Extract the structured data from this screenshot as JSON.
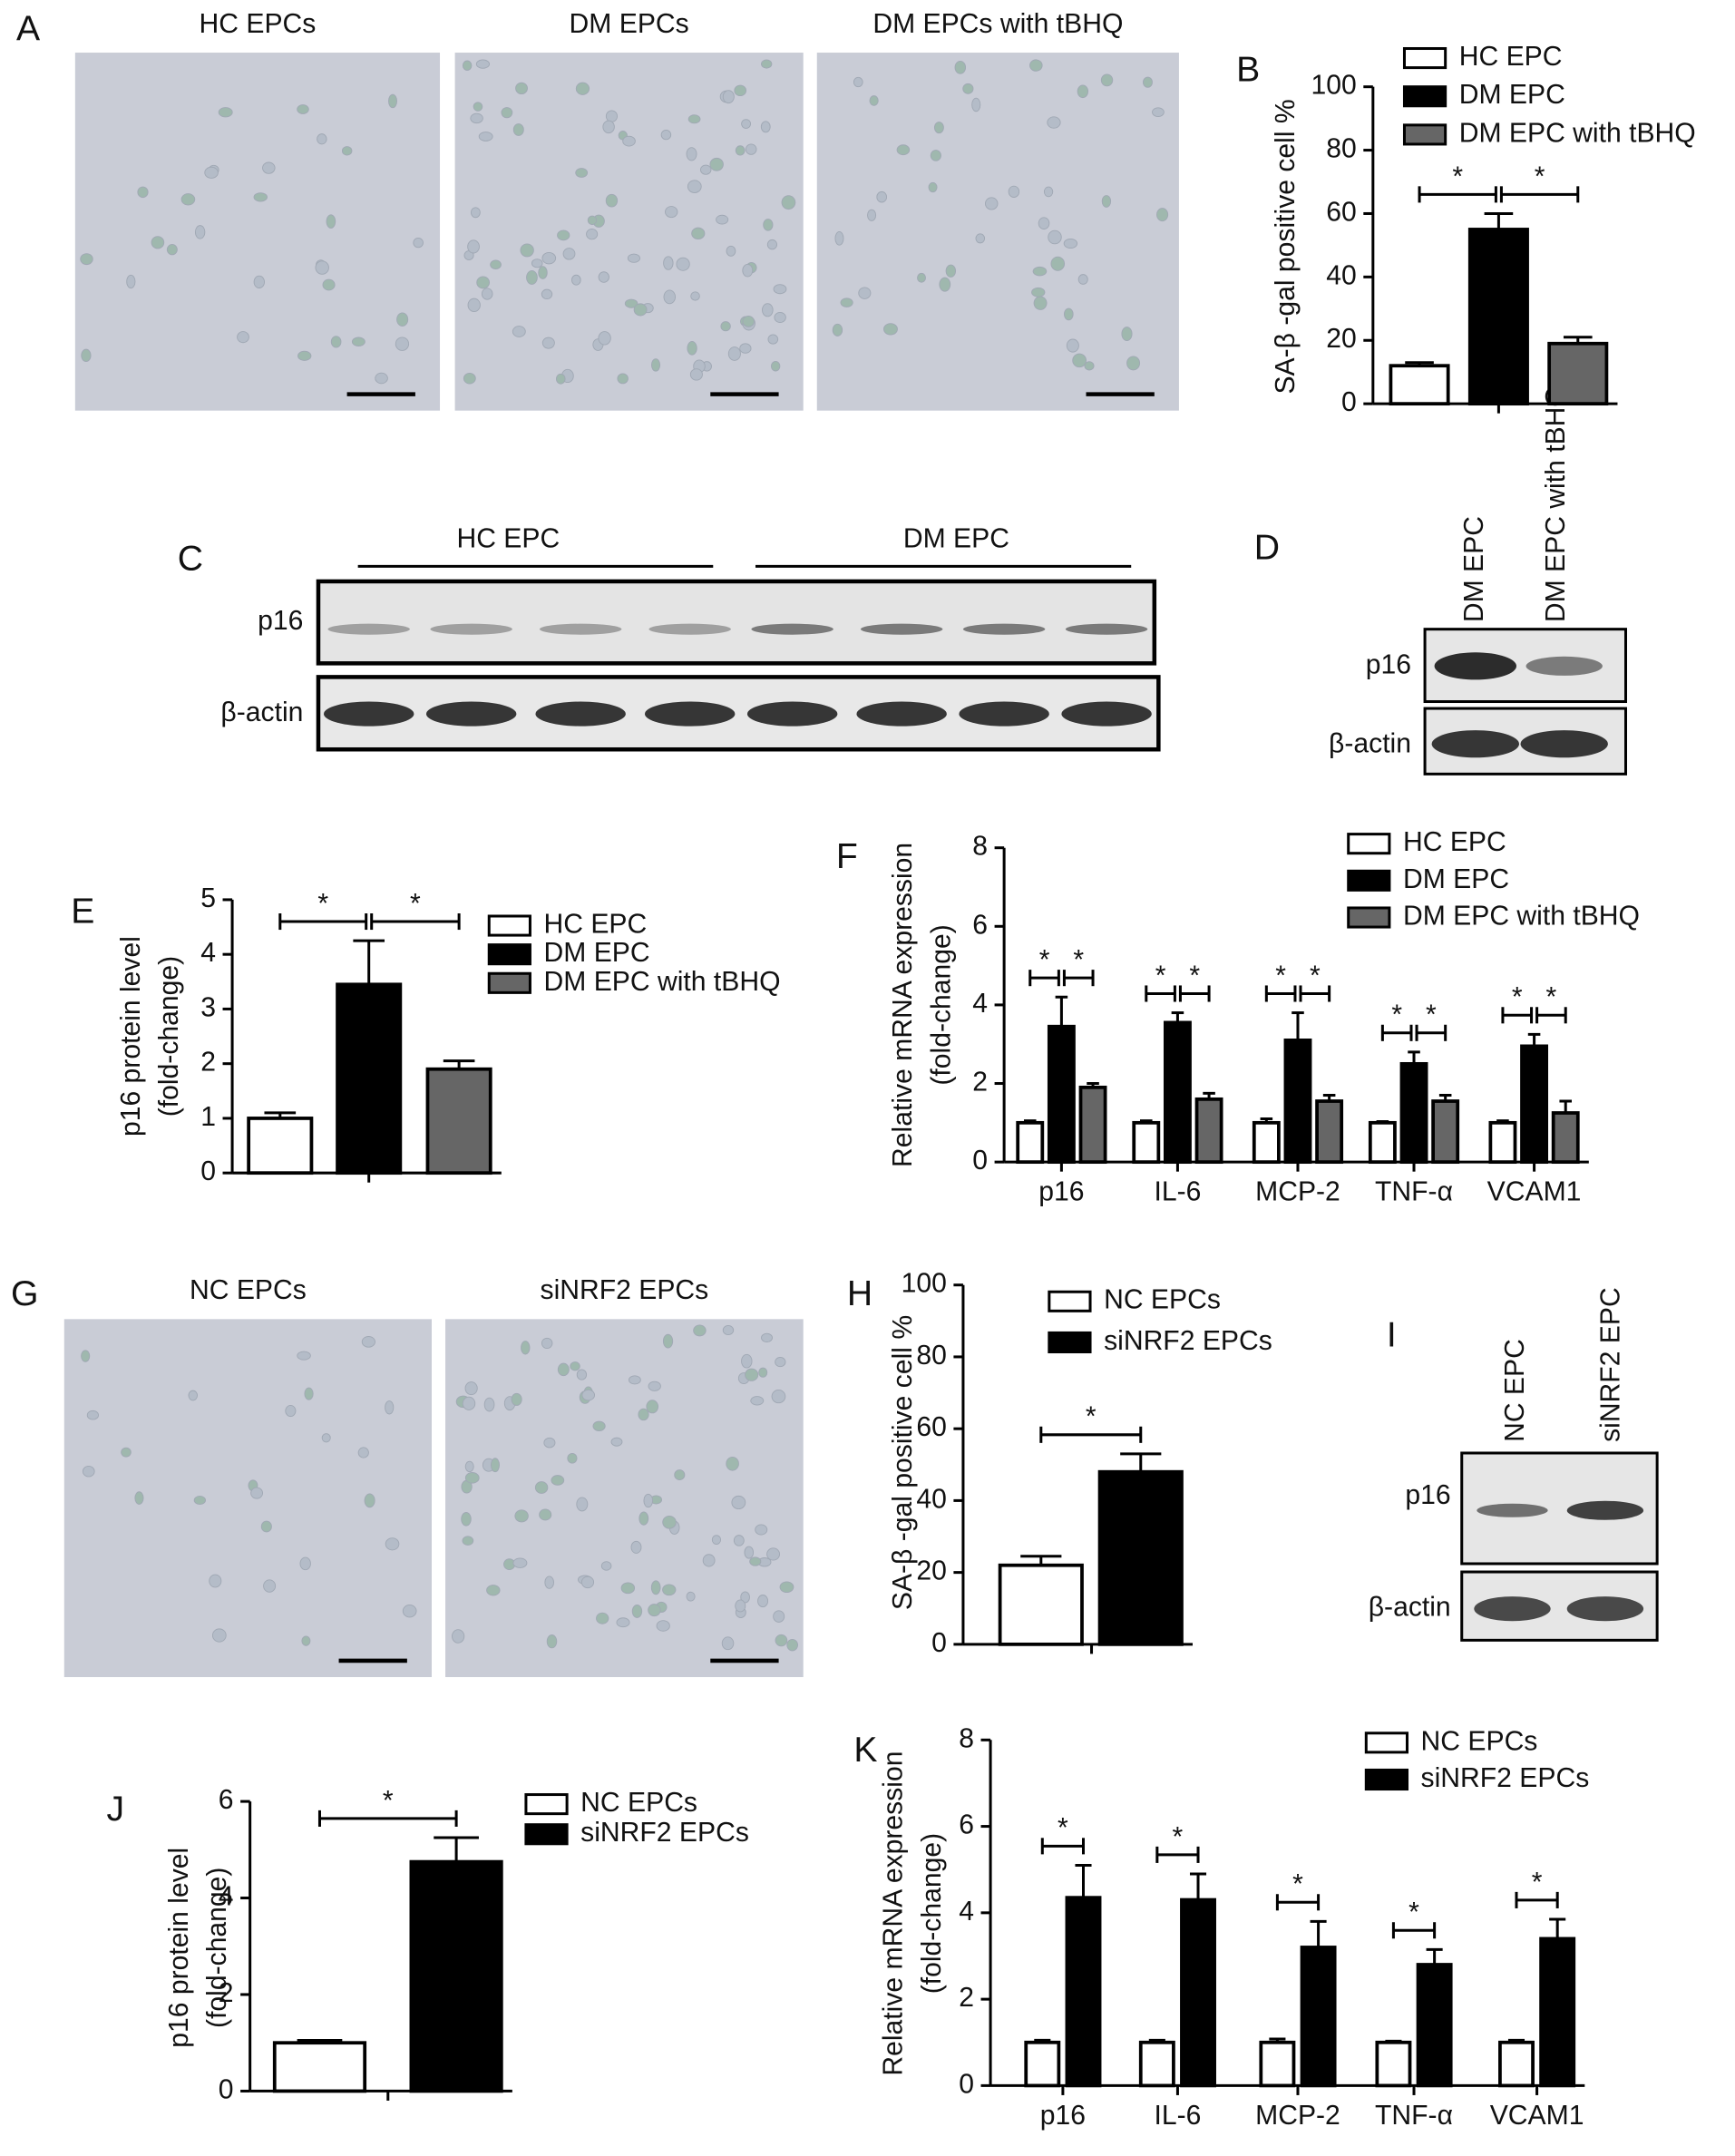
{
  "figure": {
    "micrographs": [
      {
        "panel": "A",
        "titles": [
          "HC EPCs",
          "DM EPCs",
          "DM EPCs with tBHQ"
        ]
      },
      {
        "panel": "G",
        "titles": [
          "NC EPCs",
          "siNRF2 EPCs"
        ]
      }
    ],
    "blots": [
      {
        "panel": "C",
        "groups": [
          "HC EPC",
          "DM EPC"
        ],
        "rows": [
          "p16",
          "β-actin"
        ]
      },
      {
        "panel": "D",
        "columns": [
          "DM EPC",
          "DM EPC with tBHQ"
        ],
        "rows": [
          "p16",
          "β-actin"
        ]
      },
      {
        "panel": "I",
        "columns": [
          "NC EPC",
          "siNRF2 EPC"
        ],
        "rows": [
          "p16",
          "β-actin"
        ]
      }
    ]
  },
  "chart_data": [
    {
      "type": "bar",
      "panel": "B",
      "ylabel": [
        "SA-β -gal positive cell %"
      ],
      "categories": [
        null
      ],
      "series": [
        {
          "name": "HC EPC",
          "color": "#ffffff",
          "values": [
            12
          ],
          "errors": [
            1
          ]
        },
        {
          "name": "DM EPC",
          "color": "#000000",
          "values": [
            55
          ],
          "errors": [
            5
          ]
        },
        {
          "name": "DM EPC with tBHQ",
          "color": "#666666",
          "values": [
            19
          ],
          "errors": [
            2
          ]
        }
      ],
      "annotations": [
        "*",
        "*"
      ],
      "ylim": [
        0,
        100
      ],
      "yticks": [
        0,
        20,
        40,
        60,
        80,
        100
      ]
    },
    {
      "type": "bar",
      "panel": "E",
      "ylabel": [
        "p16 protein level",
        "(fold-change)"
      ],
      "categories": [
        null
      ],
      "series": [
        {
          "name": "HC EPC",
          "color": "#ffffff",
          "values": [
            1.0
          ],
          "errors": [
            0.1
          ]
        },
        {
          "name": "DM EPC",
          "color": "#000000",
          "values": [
            3.45
          ],
          "errors": [
            0.8
          ]
        },
        {
          "name": "DM EPC with tBHQ",
          "color": "#666666",
          "values": [
            1.9
          ],
          "errors": [
            0.15
          ]
        }
      ],
      "annotations": [
        "*",
        "*"
      ],
      "ylim": [
        0,
        5
      ],
      "yticks": [
        0,
        1,
        2,
        3,
        4,
        5
      ]
    },
    {
      "type": "bar",
      "panel": "F",
      "ylabel": [
        "Relative mRNA expression",
        "(fold-change)"
      ],
      "categories": [
        "p16",
        "IL-6",
        "MCP-2",
        "TNF-α",
        "VCAM1"
      ],
      "series": [
        {
          "name": "HC EPC",
          "color": "#ffffff",
          "values": [
            1,
            1,
            1,
            1,
            1
          ],
          "errors": [
            0.05,
            0.05,
            0.1,
            0.03,
            0.05
          ]
        },
        {
          "name": "DM EPC",
          "color": "#000000",
          "values": [
            3.45,
            3.55,
            3.1,
            2.5,
            2.95
          ],
          "errors": [
            0.75,
            0.25,
            0.7,
            0.3,
            0.3
          ]
        },
        {
          "name": "DM EPC with tBHQ",
          "color": "#666666",
          "values": [
            1.9,
            1.6,
            1.55,
            1.55,
            1.25
          ],
          "errors": [
            0.1,
            0.15,
            0.15,
            0.15,
            0.3
          ]
        }
      ],
      "annotations": [
        "*",
        "*",
        "*",
        "*",
        "*",
        "*",
        "*",
        "*",
        "*",
        "*"
      ],
      "ylim": [
        0,
        8
      ],
      "yticks": [
        0,
        2,
        4,
        6,
        8
      ]
    },
    {
      "type": "bar",
      "panel": "H",
      "ylabel": [
        "SA-β -gal positive cell %"
      ],
      "categories": [
        null
      ],
      "series": [
        {
          "name": "NC EPCs",
          "color": "#ffffff",
          "values": [
            22
          ],
          "errors": [
            2.5
          ]
        },
        {
          "name": "siNRF2 EPCs",
          "color": "#000000",
          "values": [
            48
          ],
          "errors": [
            5
          ]
        }
      ],
      "annotations": [
        "*"
      ],
      "ylim": [
        0,
        100
      ],
      "yticks": [
        0,
        20,
        40,
        60,
        80,
        100
      ]
    },
    {
      "type": "bar",
      "panel": "J",
      "ylabel": [
        "p16 protein level",
        "(fold-change)"
      ],
      "categories": [
        null
      ],
      "series": [
        {
          "name": "NC EPCs",
          "color": "#ffffff",
          "values": [
            1.0
          ],
          "errors": [
            0.05
          ]
        },
        {
          "name": "siNRF2 EPCs",
          "color": "#000000",
          "values": [
            4.75
          ],
          "errors": [
            0.5
          ]
        }
      ],
      "annotations": [
        "*"
      ],
      "ylim": [
        0,
        6
      ],
      "yticks": [
        0,
        2,
        4,
        6
      ]
    },
    {
      "type": "bar",
      "panel": "K",
      "ylabel": [
        "Relative mRNA expression",
        "(fold-change)"
      ],
      "categories": [
        "p16",
        "IL-6",
        "MCP-2",
        "TNF-α",
        "VCAM1"
      ],
      "series": [
        {
          "name": "NC EPCs",
          "color": "#ffffff",
          "values": [
            1,
            1,
            1,
            1,
            1
          ],
          "errors": [
            0.05,
            0.05,
            0.08,
            0.03,
            0.05
          ]
        },
        {
          "name": "siNRF2 EPCs",
          "color": "#000000",
          "values": [
            4.35,
            4.3,
            3.2,
            2.8,
            3.4
          ],
          "errors": [
            0.75,
            0.6,
            0.6,
            0.35,
            0.45
          ]
        }
      ],
      "annotations": [
        "*",
        "*",
        "*",
        "*",
        "*"
      ],
      "ylim": [
        0,
        8
      ],
      "yticks": [
        0,
        2,
        4,
        6,
        8
      ]
    }
  ]
}
